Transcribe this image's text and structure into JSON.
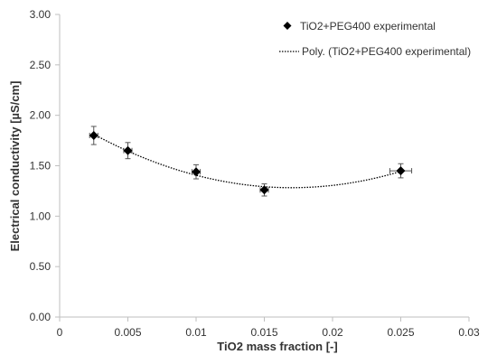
{
  "chart_data": {
    "type": "scatter",
    "title": "",
    "xlabel": "TiO2 mass fraction [-]",
    "ylabel": "Electrical conductivity [µS/cm]",
    "xlim": [
      0,
      0.03
    ],
    "ylim": [
      0,
      3.0
    ],
    "xticks": [
      0,
      0.005,
      0.01,
      0.015,
      0.02,
      0.025,
      0.03
    ],
    "xtick_labels": [
      "0",
      "0.005",
      "0.01",
      "0.015",
      "0.02",
      "0.025",
      "0.03"
    ],
    "yticks": [
      0,
      0.5,
      1.0,
      1.5,
      2.0,
      2.5,
      3.0
    ],
    "ytick_labels": [
      "0.00",
      "0.50",
      "1.00",
      "1.50",
      "2.00",
      "2.50",
      "3.00"
    ],
    "grid": false,
    "legend_position": "top-right",
    "series": [
      {
        "name": "TiO2+PEG400 experimental",
        "marker": "diamond",
        "color": "#000000",
        "x": [
          0.0025,
          0.005,
          0.01,
          0.015,
          0.025
        ],
        "y": [
          1.8,
          1.65,
          1.44,
          1.26,
          1.45
        ],
        "y_error": [
          0.09,
          0.08,
          0.07,
          0.06,
          0.07
        ],
        "x_error": [
          0.0003,
          0.0003,
          0.0003,
          0.0003,
          0.0008
        ]
      }
    ],
    "trendline": {
      "name": "Poly. (TiO2+PEG400 experimental)",
      "style": "dotted",
      "color": "#000000",
      "type": "polynomial"
    }
  }
}
